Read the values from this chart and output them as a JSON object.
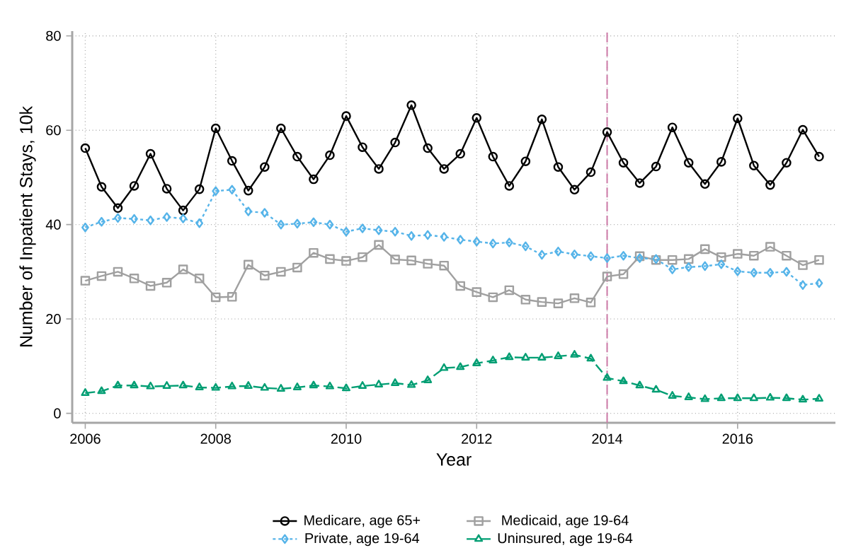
{
  "chart_data": {
    "type": "line",
    "xlabel": "Year",
    "ylabel": "Number of Inpatient Stays, 10k",
    "x": [
      2006,
      2006.25,
      2006.5,
      2006.75,
      2007,
      2007.25,
      2007.5,
      2007.75,
      2008,
      2008.25,
      2008.5,
      2008.75,
      2009,
      2009.25,
      2009.5,
      2009.75,
      2010,
      2010.25,
      2010.5,
      2010.75,
      2011,
      2011.25,
      2011.5,
      2011.75,
      2012,
      2012.25,
      2012.5,
      2012.75,
      2013,
      2013.25,
      2013.5,
      2013.75,
      2014,
      2014.25,
      2014.5,
      2014.75,
      2015,
      2015.25,
      2015.5,
      2015.75,
      2016,
      2016.25,
      2016.5,
      2016.75,
      2017,
      2017.25
    ],
    "series": [
      {
        "name": "Medicare, age 65+",
        "color": "#000000",
        "marker": "circle",
        "line_style": "solid",
        "values": [
          56.2,
          48,
          43.5,
          48.2,
          55,
          47.6,
          43,
          47.5,
          60.4,
          53.5,
          47.2,
          52.2,
          60.4,
          54.4,
          49.6,
          54.7,
          63,
          56.4,
          51.8,
          57.4,
          65.3,
          56.2,
          51.8,
          55,
          62.6,
          54.4,
          48.2,
          53.4,
          62.3,
          52.2,
          47.4,
          51.1,
          59.6,
          53.1,
          48.8,
          52.3,
          60.6,
          53.1,
          48.6,
          53.3,
          62.5,
          52.5,
          48.4,
          53.1,
          60.1,
          54.4
        ]
      },
      {
        "name": "Medicaid, age 19-64",
        "color": "#a0a0a0",
        "marker": "square",
        "line_style": "solid",
        "values": [
          28.1,
          29.1,
          30,
          28.6,
          27,
          27.7,
          30.5,
          28.6,
          24.6,
          24.7,
          31.5,
          29.2,
          30,
          30.9,
          34,
          32.7,
          32.3,
          33.1,
          35.7,
          32.6,
          32.4,
          31.7,
          31.3,
          27,
          25.7,
          24.6,
          26.1,
          24.1,
          23.6,
          23.3,
          24.4,
          23.5,
          29,
          29.5,
          33.3,
          32.5,
          32.5,
          32.7,
          34.8,
          33.1,
          33.8,
          33.4,
          35.3,
          33.4,
          31.4,
          32.5
        ]
      },
      {
        "name": "Private, age 19-64",
        "color": "#56b4e9",
        "marker": "diamond",
        "line_style": "dotted",
        "values": [
          39.4,
          40.6,
          41.4,
          41.2,
          40.9,
          41.6,
          41.3,
          40.3,
          47.1,
          47.4,
          42.8,
          42.5,
          40,
          40.2,
          40.5,
          40,
          38.5,
          39.2,
          38.8,
          38.5,
          37.6,
          37.8,
          37.4,
          36.8,
          36.4,
          36,
          36.2,
          35.4,
          33.6,
          34.3,
          33.7,
          33.3,
          32.9,
          33.4,
          32.9,
          32.7,
          30.5,
          31,
          31.2,
          31.6,
          30.1,
          29.8,
          29.8,
          30,
          27.2,
          27.6
        ]
      },
      {
        "name": "Uninsured, age 19-64",
        "color": "#009e73",
        "marker": "triangle",
        "line_style": "dashed",
        "values": [
          4.3,
          4.7,
          5.9,
          5.9,
          5.7,
          5.8,
          5.9,
          5.5,
          5.4,
          5.7,
          5.8,
          5.4,
          5.2,
          5.5,
          5.9,
          5.7,
          5.3,
          5.8,
          6.1,
          6.4,
          6.0,
          7.0,
          9.6,
          9.8,
          10.6,
          11.2,
          11.9,
          11.8,
          11.8,
          12.1,
          12.4,
          11.6,
          7.5,
          6.8,
          5.9,
          5.0,
          3.7,
          3.4,
          3.0,
          3.2,
          3.2,
          3.2,
          3.3,
          3.2,
          2.9,
          3.1
        ]
      }
    ],
    "xlim": [
      2005.8,
      2017.5
    ],
    "ylim": [
      -2,
      81
    ],
    "xticks": [
      2006,
      2008,
      2010,
      2012,
      2014,
      2016
    ],
    "yticks": [
      0,
      20,
      40,
      60,
      80
    ],
    "grid": true,
    "legend": "bottom",
    "ref_lines": [
      {
        "axis": "x",
        "value": 2014,
        "color": "#cc79a7",
        "line_style": "dashed"
      }
    ]
  }
}
